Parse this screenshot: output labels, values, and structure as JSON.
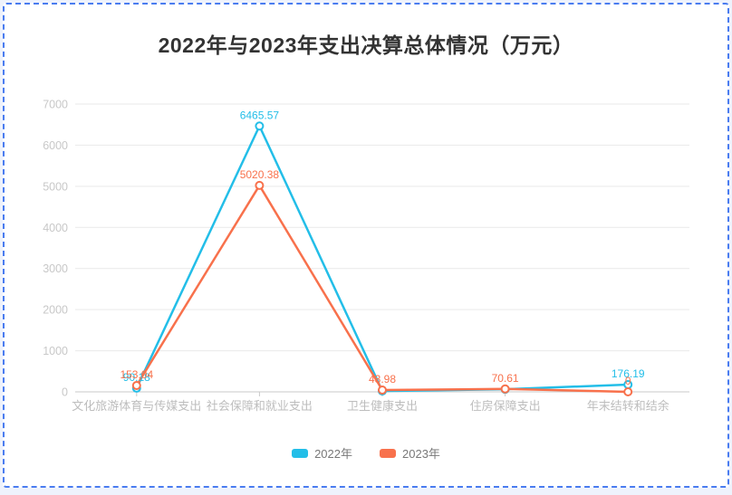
{
  "page": {
    "border_color": "#4a7cf0",
    "background_color": "#ffffff"
  },
  "chart_data": {
    "type": "line",
    "title": "2022年与2023年支出决算总体情况（万元）",
    "categories": [
      "文化旅游体育与传媒支出",
      "社会保障和就业支出",
      "卫生健康支出",
      "住房保障支出",
      "年末结转和结余"
    ],
    "series": [
      {
        "name": "2022年",
        "color": "#23bee8",
        "values": [
          90.18,
          6465.57,
          20,
          62,
          176.19
        ],
        "labels": [
          "90.18",
          "6465.57",
          "",
          "",
          "176.19"
        ]
      },
      {
        "name": "2023年",
        "color": "#f8714c",
        "values": [
          153.04,
          5020.38,
          43.98,
          70.61,
          0
        ],
        "labels": [
          "153.04",
          "5020.38",
          "43.98",
          "70.61",
          "0"
        ]
      }
    ],
    "y_ticks": [
      0,
      1000,
      2000,
      3000,
      4000,
      5000,
      6000,
      7000
    ],
    "ylim": [
      0,
      7000
    ],
    "grid": true,
    "legend_position": "bottom",
    "style": {
      "grid_color": "#e9e9e9",
      "axis_color": "#c9c9c9",
      "y_tick_label_color": "#c8c8c8",
      "x_label_color": "#bdbdbd",
      "title_color": "#333333",
      "legend_text_color": "#787878"
    }
  }
}
